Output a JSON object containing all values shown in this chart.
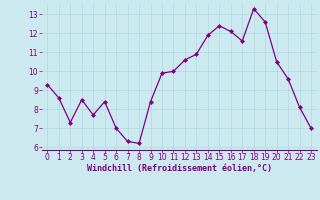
{
  "x": [
    0,
    1,
    2,
    3,
    4,
    5,
    6,
    7,
    8,
    9,
    10,
    11,
    12,
    13,
    14,
    15,
    16,
    17,
    18,
    19,
    20,
    21,
    22,
    23
  ],
  "y": [
    9.3,
    8.6,
    7.3,
    8.5,
    7.7,
    8.4,
    7.0,
    6.3,
    6.2,
    8.4,
    9.9,
    10.0,
    10.6,
    10.9,
    11.9,
    12.4,
    12.1,
    11.6,
    13.3,
    12.6,
    10.5,
    9.6,
    8.1,
    7.0
  ],
  "line_color": "#800080",
  "marker": "D",
  "marker_size": 2.0,
  "bg_color": "#cce9f0",
  "grid_color": "#b0d8e0",
  "xlabel": "Windchill (Refroidissement éolien,°C)",
  "xlabel_color": "#800080",
  "tick_color": "#800080",
  "spine_color": "#800080",
  "xlim": [
    -0.5,
    23.5
  ],
  "ylim": [
    5.85,
    13.55
  ],
  "yticks": [
    6,
    7,
    8,
    9,
    10,
    11,
    12,
    13
  ],
  "xticks": [
    0,
    1,
    2,
    3,
    4,
    5,
    6,
    7,
    8,
    9,
    10,
    11,
    12,
    13,
    14,
    15,
    16,
    17,
    18,
    19,
    20,
    21,
    22,
    23
  ],
  "tick_fontsize": 5.5,
  "xlabel_fontsize": 6.0
}
